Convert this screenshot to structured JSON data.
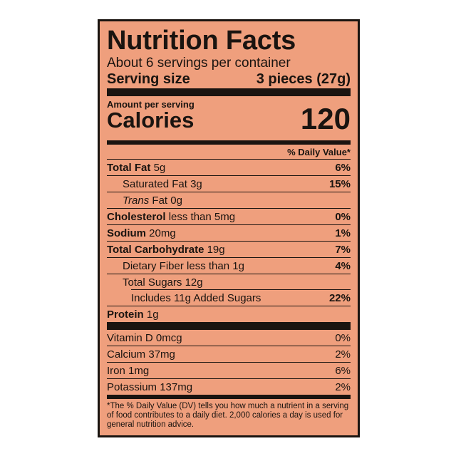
{
  "label": {
    "title": "Nutrition Facts",
    "servings_per_container": "About 6 servings per container",
    "serving_size_label": "Serving size",
    "serving_size_value": "3 pieces (27g)",
    "amount_per_serving": "Amount per serving",
    "calories_label": "Calories",
    "calories_value": "120",
    "daily_value_header": "% Daily Value*",
    "nutrients": {
      "total_fat": {
        "name": "Total Fat",
        "amount": "5g",
        "dv": "6%"
      },
      "saturated_fat": {
        "name": "Saturated Fat",
        "amount": "3g",
        "dv": "15%"
      },
      "trans_fat": {
        "name": "Trans",
        "suffix": "Fat",
        "amount": "0g"
      },
      "cholesterol": {
        "name": "Cholesterol",
        "amount": "less than 5mg",
        "dv": "0%"
      },
      "sodium": {
        "name": "Sodium",
        "amount": "20mg",
        "dv": "1%"
      },
      "total_carbohydrate": {
        "name": "Total Carbohydrate",
        "amount": "19g",
        "dv": "7%"
      },
      "dietary_fiber": {
        "name": "Dietary Fiber",
        "amount": "less than 1g",
        "dv": "4%"
      },
      "total_sugars": {
        "name": "Total Sugars",
        "amount": "12g"
      },
      "added_sugars": {
        "prefix": "Includes",
        "amount": "11g",
        "name": "Added Sugars",
        "dv": "22%"
      },
      "protein": {
        "name": "Protein",
        "amount": "1g"
      }
    },
    "vitamins": [
      {
        "name": "Vitamin D",
        "amount": "0mcg",
        "dv": "0%"
      },
      {
        "name": "Calcium",
        "amount": "37mg",
        "dv": "2%"
      },
      {
        "name": "Iron",
        "amount": "1mg",
        "dv": "6%"
      },
      {
        "name": "Potassium",
        "amount": "137mg",
        "dv": "2%"
      }
    ],
    "footnote": "*The % Daily Value (DV) tells you how much a nutrient in a serving of food contributes to a daily diet. 2,000 calories a day is used for general nutrition advice.",
    "colors": {
      "background": "#ef9f7d",
      "ink": "#1a1410"
    }
  }
}
